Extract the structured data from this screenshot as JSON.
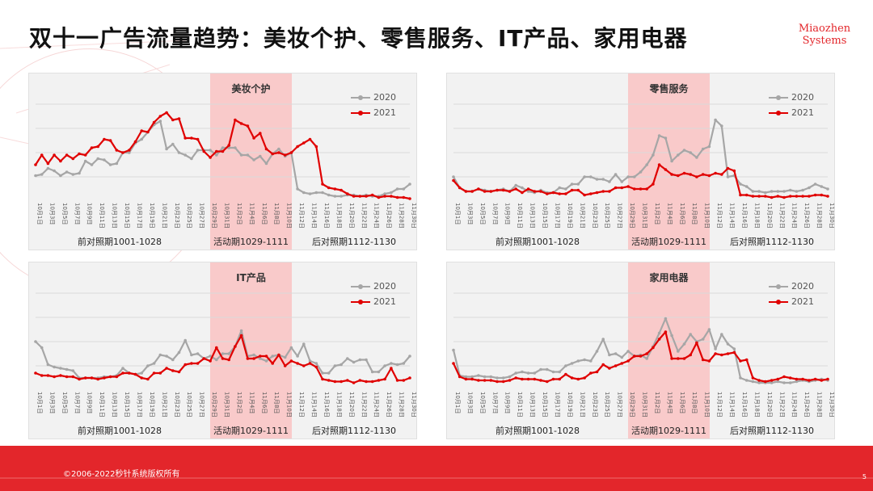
{
  "page": {
    "title": "双十一广告流量趋势：美妆个护、零售服务、IT产品、家用电器",
    "logo_line1": "Miaozhen",
    "logo_line2": "Systems",
    "footer_text": "©2006-2022秒针系统版权所有",
    "page_number": "5"
  },
  "colors": {
    "accent": "#e3262b",
    "series_2020": "#a6a6a6",
    "series_2021": "#e00000",
    "highlight": "#f9caca",
    "panel_bg": "#f2f2f2"
  },
  "common": {
    "legend": [
      "2020",
      "2021"
    ],
    "periods": [
      "前对照期1001-1028",
      "活动期1029-1111",
      "后对照期1112-1130"
    ],
    "x_labels": [
      "10月1日",
      "10月3日",
      "10月5日",
      "10月7日",
      "10月9日",
      "10月11日",
      "10月13日",
      "10月15日",
      "10月17日",
      "10月19日",
      "10月21日",
      "10月23日",
      "10月25日",
      "10月27日",
      "10月29日",
      "10月31日",
      "11月2日",
      "11月4日",
      "11月6日",
      "11月8日",
      "11月10日",
      "11月12日",
      "11月14日",
      "11月16日",
      "11月18日",
      "11月20日",
      "11月22日",
      "11月24日",
      "11月26日",
      "11月28日",
      "11月30日"
    ]
  },
  "chart_data": [
    {
      "type": "line",
      "title": "美妆个护",
      "x_start": "10月1日",
      "x_end": "11月30日",
      "highlight_range": [
        "10月29日",
        "11月11日"
      ],
      "ylim": [
        0,
        100
      ],
      "grid": true,
      "series": [
        {
          "name": "2020",
          "values": [
            21,
            22,
            27,
            25,
            21,
            24,
            22,
            23,
            33,
            30,
            35,
            34,
            30,
            31,
            40,
            40,
            48,
            51,
            57,
            63,
            66,
            43,
            47,
            40,
            38,
            35,
            42,
            42,
            42,
            38,
            44,
            44,
            44,
            38,
            38,
            34,
            37,
            31,
            39,
            43,
            37,
            40,
            10,
            7,
            6,
            7,
            7,
            5,
            4,
            4,
            5,
            5,
            4,
            5,
            4,
            4,
            6,
            7,
            10,
            10,
            14
          ]
        },
        {
          "name": "2021",
          "values": [
            30,
            38,
            31,
            38,
            33,
            38,
            35,
            39,
            38,
            44,
            45,
            51,
            50,
            42,
            40,
            42,
            49,
            58,
            57,
            65,
            70,
            73,
            67,
            68,
            52,
            52,
            51,
            41,
            36,
            41,
            41,
            46,
            67,
            64,
            62,
            52,
            56,
            43,
            39,
            40,
            38,
            40,
            45,
            48,
            51,
            45,
            14,
            11,
            10,
            9,
            6,
            4,
            4,
            4,
            5,
            3,
            4,
            4,
            3,
            3,
            2
          ]
        }
      ]
    },
    {
      "type": "line",
      "title": "零售服务",
      "x_start": "10月1日",
      "x_end": "11月30日",
      "highlight_range": [
        "10月29日",
        "11月11日"
      ],
      "ylim": [
        0,
        100
      ],
      "grid": true,
      "series": [
        {
          "name": "2020",
          "values": [
            20,
            11,
            8,
            8,
            10,
            9,
            8,
            9,
            10,
            8,
            13,
            11,
            8,
            7,
            9,
            7,
            7,
            11,
            10,
            14,
            14,
            20,
            20,
            18,
            18,
            16,
            22,
            16,
            20,
            20,
            24,
            30,
            38,
            54,
            52,
            33,
            38,
            42,
            40,
            36,
            43,
            45,
            67,
            62,
            20,
            21,
            14,
            12,
            8,
            8,
            7,
            8,
            8,
            8,
            9,
            8,
            9,
            11,
            14,
            12,
            10
          ]
        },
        {
          "name": "2021",
          "values": [
            17,
            11,
            8,
            8,
            10,
            8,
            8,
            9,
            9,
            8,
            10,
            7,
            10,
            8,
            8,
            6,
            7,
            6,
            6,
            9,
            9,
            5,
            6,
            7,
            8,
            8,
            11,
            11,
            12,
            10,
            10,
            10,
            14,
            30,
            26,
            22,
            21,
            23,
            22,
            20,
            22,
            21,
            23,
            22,
            27,
            25,
            5,
            5,
            4,
            4,
            4,
            3,
            4,
            3,
            4,
            4,
            4,
            4,
            5,
            5,
            4
          ]
        }
      ]
    },
    {
      "type": "line",
      "title": "IT产品",
      "x_start": "10月1日",
      "x_end": "11月30日",
      "highlight_range": [
        "10月29日",
        "11月11日"
      ],
      "ylim": [
        0,
        100
      ],
      "grid": true,
      "series": [
        {
          "name": "2020",
          "values": [
            40,
            35,
            21,
            19,
            18,
            17,
            16,
            10,
            10,
            10,
            10,
            11,
            11,
            12,
            18,
            14,
            13,
            14,
            20,
            22,
            29,
            28,
            25,
            31,
            41,
            29,
            30,
            26,
            28,
            25,
            30,
            30,
            36,
            49,
            28,
            29,
            26,
            24,
            28,
            29,
            27,
            35,
            28,
            38,
            24,
            22,
            14,
            14,
            20,
            21,
            26,
            23,
            25,
            25,
            15,
            15,
            20,
            22,
            21,
            22,
            28
          ]
        },
        {
          "name": "2021",
          "values": [
            14,
            12,
            12,
            11,
            12,
            11,
            11,
            9,
            10,
            10,
            9,
            10,
            11,
            11,
            14,
            14,
            13,
            10,
            9,
            14,
            14,
            18,
            16,
            15,
            21,
            22,
            22,
            26,
            24,
            35,
            26,
            25,
            36,
            45,
            26,
            26,
            28,
            28,
            22,
            29,
            20,
            24,
            22,
            20,
            22,
            19,
            9,
            8,
            7,
            7,
            8,
            6,
            8,
            7,
            7,
            8,
            9,
            18,
            8,
            8,
            10
          ]
        }
      ]
    },
    {
      "type": "line",
      "title": "家用电器",
      "x_start": "10月1日",
      "x_end": "11月30日",
      "highlight_range": [
        "10月29日",
        "11月11日"
      ],
      "ylim": [
        0,
        100
      ],
      "grid": true,
      "series": [
        {
          "name": "2020",
          "values": [
            33,
            12,
            11,
            11,
            12,
            11,
            11,
            10,
            10,
            11,
            14,
            15,
            14,
            14,
            17,
            17,
            15,
            15,
            20,
            22,
            24,
            25,
            24,
            32,
            42,
            29,
            30,
            27,
            32,
            28,
            29,
            26,
            36,
            47,
            59,
            45,
            32,
            38,
            46,
            40,
            42,
            50,
            34,
            46,
            38,
            34,
            10,
            8,
            7,
            6,
            6,
            6,
            7,
            6,
            6,
            7,
            8,
            7,
            8,
            9,
            8
          ]
        },
        {
          "name": "2021",
          "values": [
            22,
            11,
            9,
            9,
            8,
            8,
            8,
            7,
            7,
            8,
            10,
            9,
            9,
            9,
            8,
            7,
            9,
            9,
            13,
            10,
            9,
            10,
            14,
            15,
            21,
            18,
            20,
            22,
            24,
            28,
            28,
            30,
            35,
            42,
            48,
            26,
            26,
            26,
            29,
            39,
            25,
            24,
            30,
            29,
            30,
            31,
            24,
            25,
            10,
            8,
            7,
            8,
            9,
            11,
            10,
            9,
            9,
            8,
            9,
            8,
            9
          ]
        }
      ]
    }
  ]
}
